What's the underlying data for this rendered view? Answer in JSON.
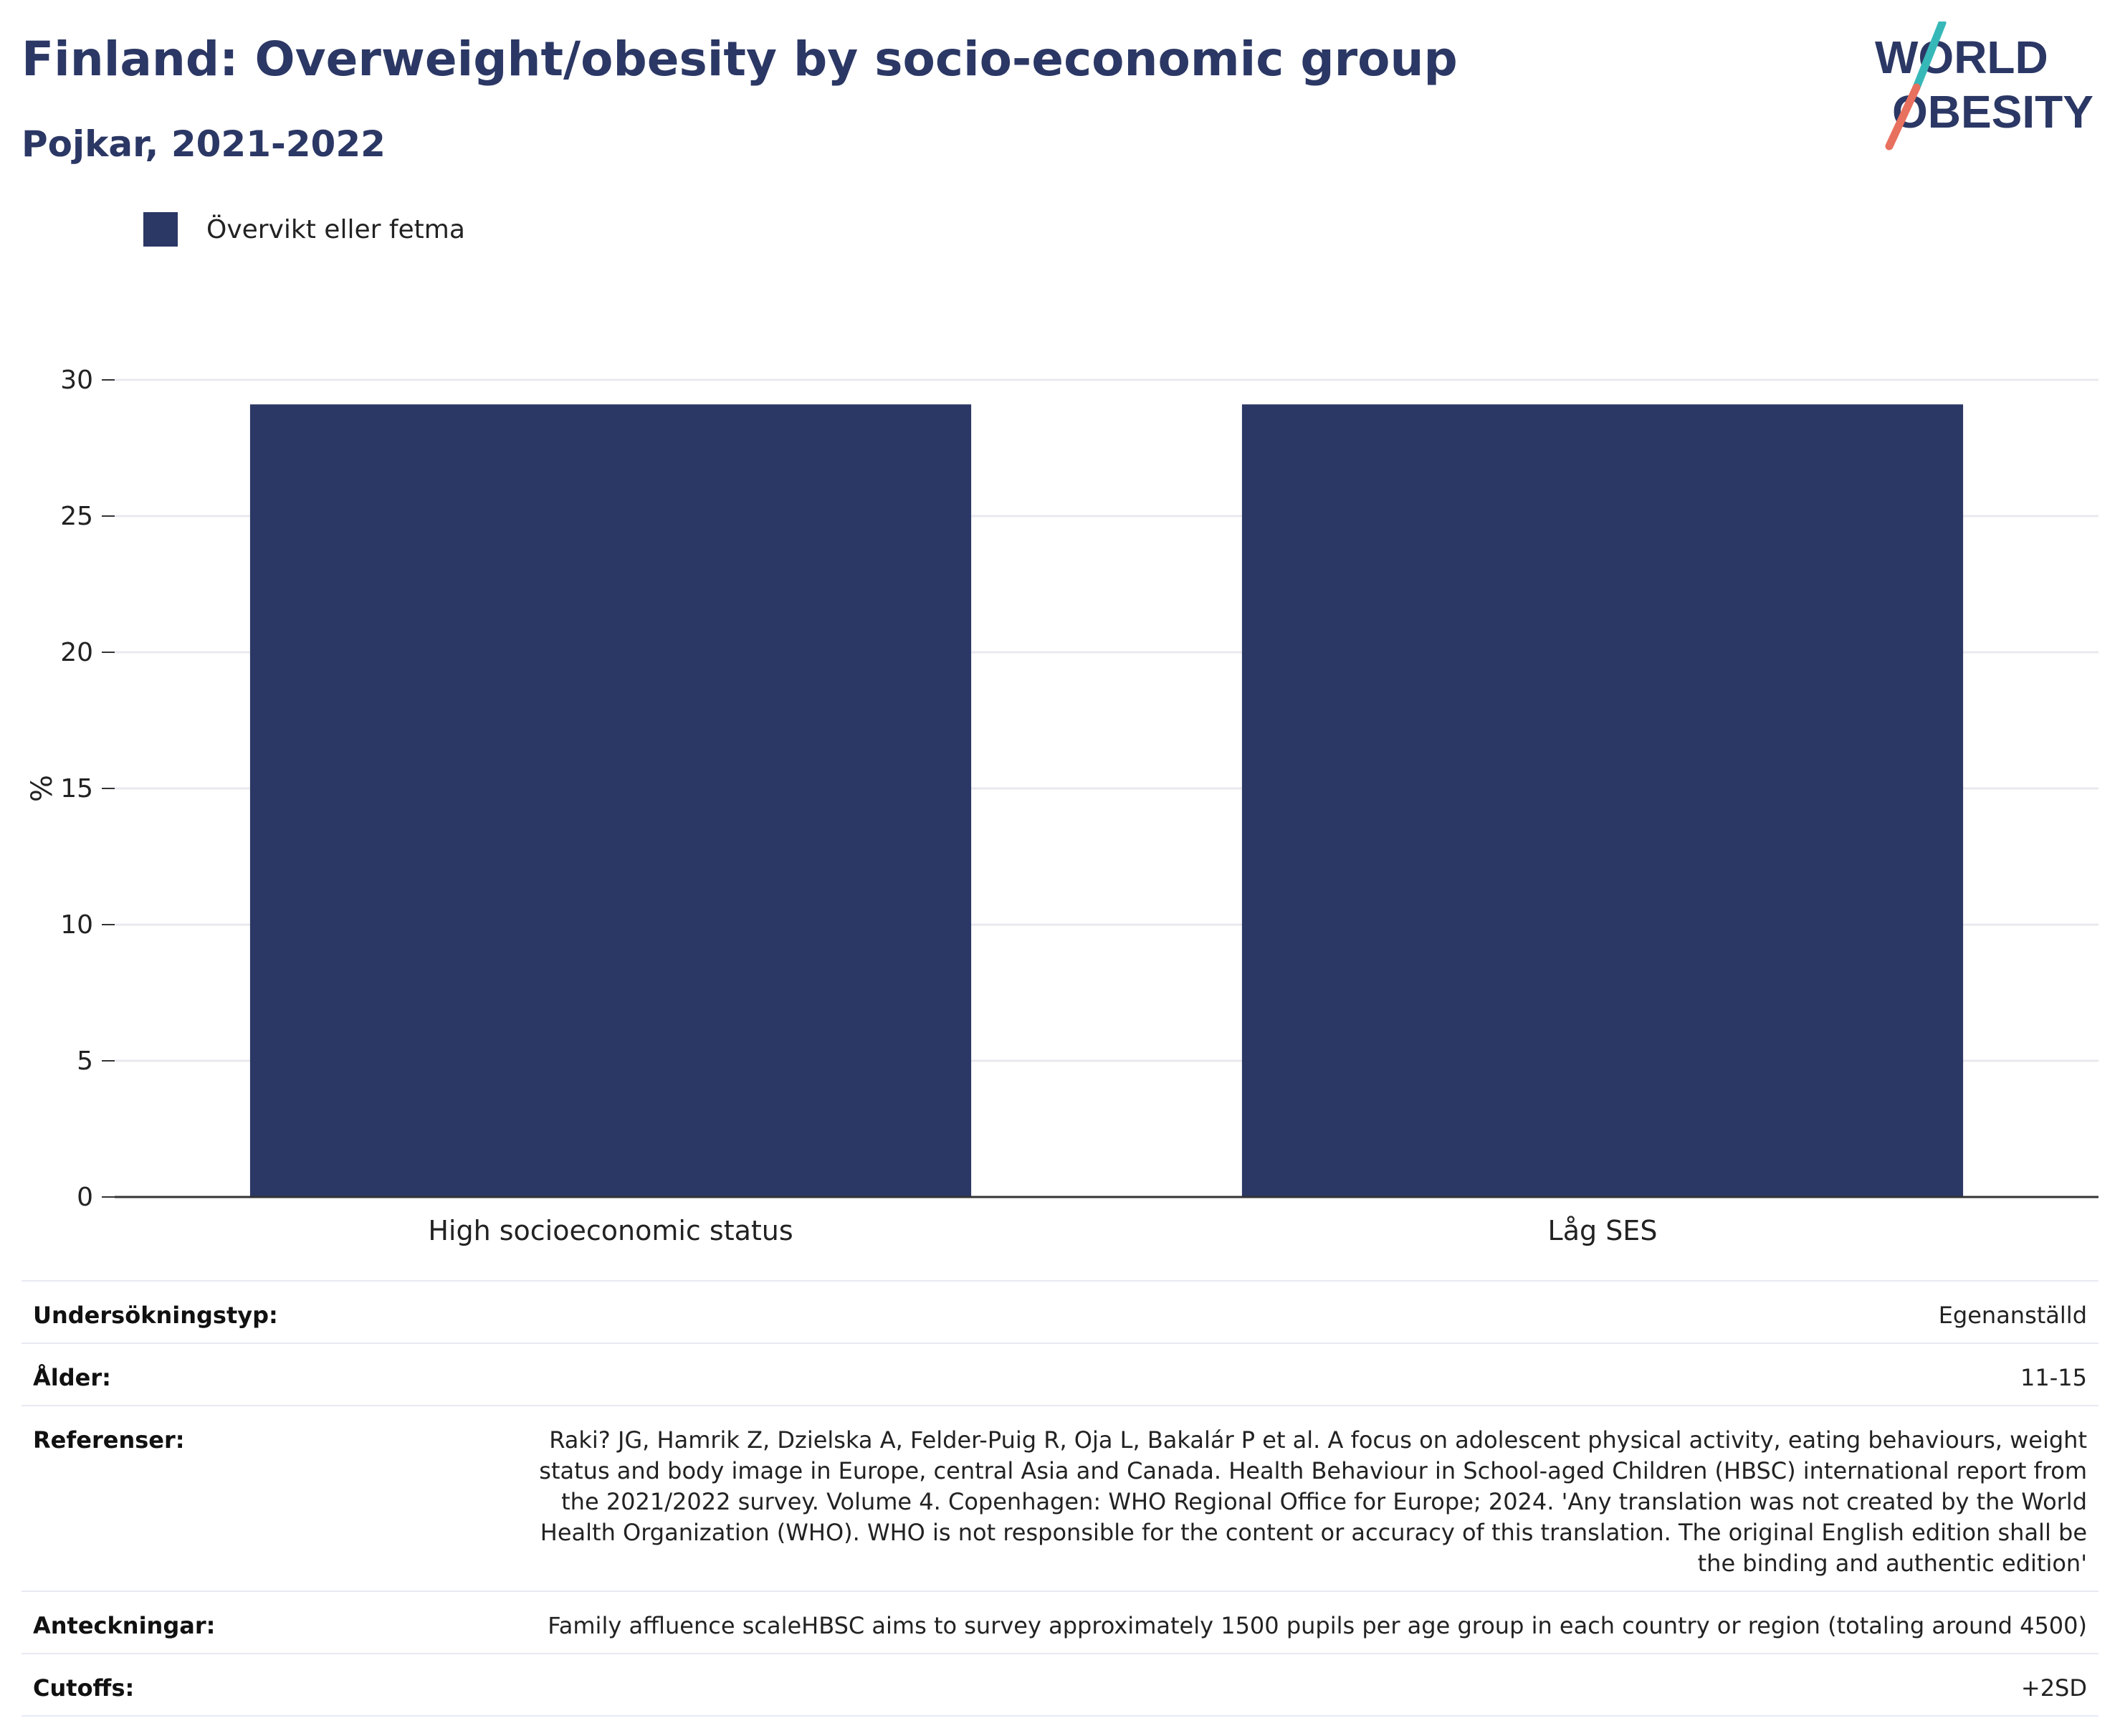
{
  "header": {
    "title": "Finland: Overweight/obesity by socio-economic group",
    "subtitle": "Pojkar, 2021-2022"
  },
  "logo": {
    "line1": "WORLD",
    "line2": "OBESITY"
  },
  "colors": {
    "bar": "#2b3764",
    "title": "#2b3764",
    "logo_teal": "#37b8b8",
    "logo_coral": "#e8705e",
    "grid": "#e9e9ef"
  },
  "chart_data": {
    "type": "bar",
    "categories": [
      "High socioeconomic status",
      "Låg SES"
    ],
    "series": [
      {
        "name": "Övervikt eller fetma",
        "values": [
          29.1,
          29.1
        ]
      }
    ],
    "xlabel": "",
    "ylabel": "%",
    "ylim": [
      0,
      30
    ],
    "yticks": [
      0,
      5,
      10,
      15,
      20,
      25,
      30
    ],
    "grid": true,
    "legend_position": "top-left"
  },
  "meta": [
    {
      "label": "Undersökningstyp:",
      "value": "Egenanställd"
    },
    {
      "label": "Ålder:",
      "value": "11-15"
    },
    {
      "label": "Referenser:",
      "value": "Raki? JG, Hamrik Z, Dzielska A, Felder-Puig R, Oja L, Bakalár P et al. A focus on adolescent physical activity, eating behaviours, weight status and body image in Europe, central Asia and Canada. Health Behaviour in School-aged Children (HBSC) international report from the 2021/2022 survey. Volume 4. Copenhagen: WHO Regional Office for Europe; 2024. 'Any translation was not created by the World Health Organization (WHO). WHO is not responsible for the content or accuracy of this translation. The original English edition shall be the binding and authentic edition'"
    },
    {
      "label": "Anteckningar:",
      "value": "Family affluence scaleHBSC aims to survey approximately 1500 pupils per age group in each country or region (totaling around 4500)"
    },
    {
      "label": "Cutoffs:",
      "value": "+2SD"
    }
  ]
}
